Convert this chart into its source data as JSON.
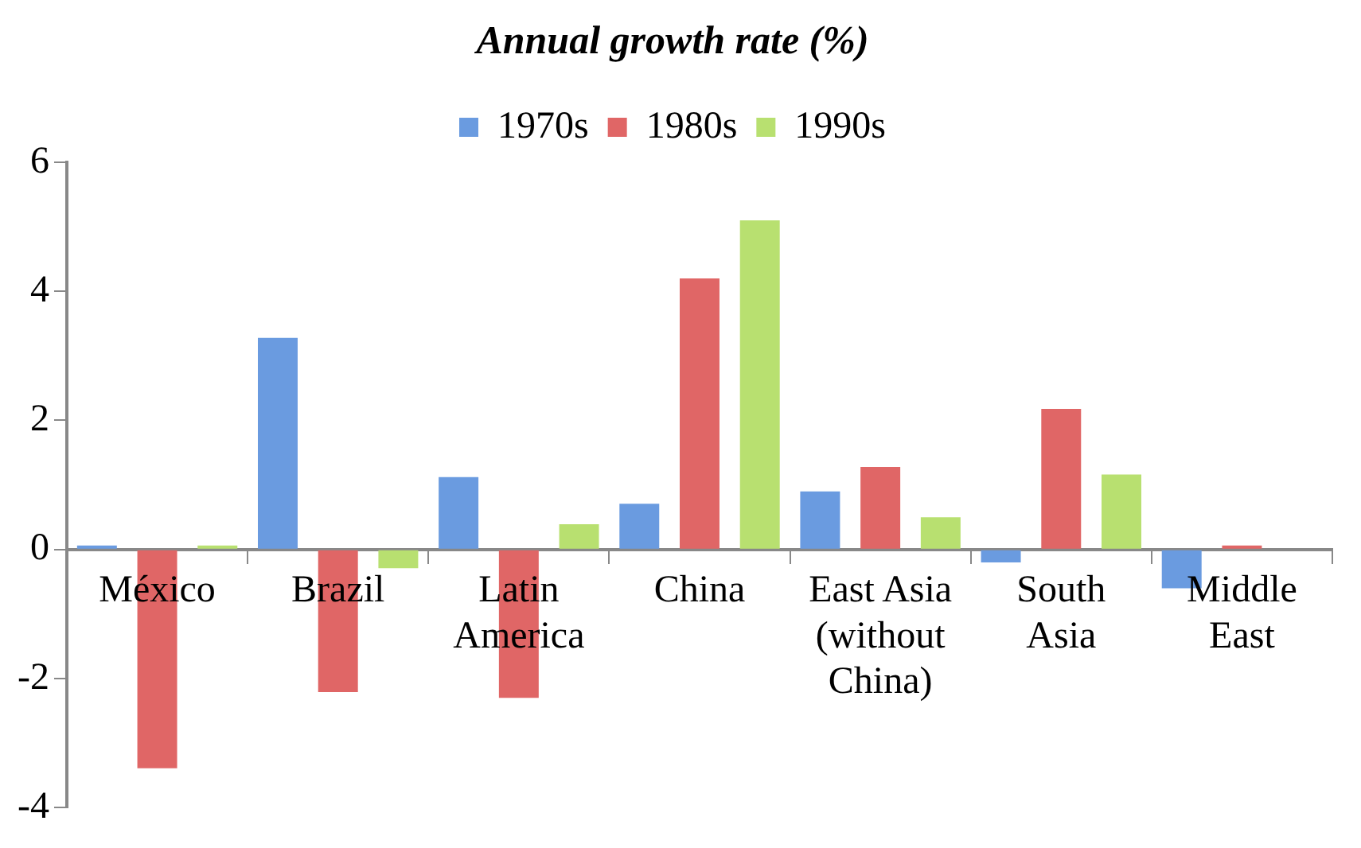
{
  "chart_data": {
    "type": "bar",
    "title": "Annual growth rate (%)",
    "categories": [
      "México",
      "Brazil",
      "Latin America",
      "China",
      "East Asia (without China)",
      "South Asia",
      "Middle East"
    ],
    "series": [
      {
        "name": "1970s",
        "color": "#6a9be0",
        "values": [
          0.06,
          3.28,
          1.12,
          0.71,
          0.9,
          -0.2,
          -0.6
        ]
      },
      {
        "name": "1980s",
        "color": "#e06666",
        "values": [
          -3.39,
          -2.21,
          -2.3,
          4.2,
          1.28,
          2.18,
          0.06
        ]
      },
      {
        "name": "1990s",
        "color": "#b8e070",
        "values": [
          0.06,
          -0.29,
          0.39,
          5.1,
          0.5,
          1.16,
          null
        ]
      }
    ],
    "ylim": [
      -4,
      6
    ],
    "yticks": [
      -4,
      -2,
      0,
      2,
      4,
      6
    ],
    "grid": false,
    "legend": "top"
  }
}
